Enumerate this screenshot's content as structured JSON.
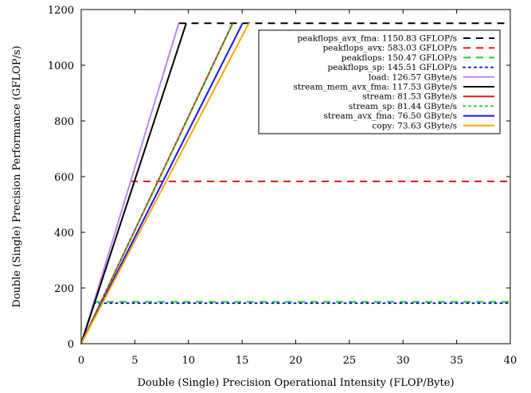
{
  "chart_data": {
    "type": "line",
    "title": "",
    "xlabel": "Double (Single) Precision Operational Intensity (FLOP/Byte)",
    "ylabel": "Double (Single) Precision Performance (GFLOP/s)",
    "xlim": [
      0,
      40
    ],
    "ylim": [
      0,
      1200
    ],
    "xticks": [
      0,
      5,
      10,
      15,
      20,
      25,
      30,
      35,
      40
    ],
    "yticks": [
      0,
      200,
      400,
      600,
      800,
      1000,
      1200
    ],
    "grid": false,
    "legend_position": "top-right",
    "ceilings": [
      {
        "name": "peakflops_avx_fma: 1150.83 GFLOP/s",
        "kind": "compute",
        "value": 1150.83,
        "color": "#000000",
        "style": "dashed"
      },
      {
        "name": "peakflops_avx: 583.03 GFLOP/s",
        "kind": "compute",
        "value": 583.03,
        "color": "#e41a1c",
        "style": "dashed"
      },
      {
        "name": "peakflops: 150.47 GFLOP/s",
        "kind": "compute",
        "value": 150.47,
        "color": "#22cc22",
        "style": "dashed"
      },
      {
        "name": "peakflops_sp: 145.51 GFLOP/s",
        "kind": "compute",
        "value": 145.51,
        "color": "#1515ee",
        "style": "dotted"
      },
      {
        "name": "load: 126.57 GByte/s",
        "kind": "bandwidth",
        "value": 126.57,
        "color": "#bb88ee",
        "style": "solid"
      },
      {
        "name": "stream_mem_avx_fma: 117.53 GByte/s",
        "kind": "bandwidth",
        "value": 117.53,
        "color": "#000000",
        "style": "solid"
      },
      {
        "name": "stream: 81.53 GByte/s",
        "kind": "bandwidth",
        "value": 81.53,
        "color": "#e41a1c",
        "style": "solid"
      },
      {
        "name": "stream_sp: 81.44 GByte/s",
        "kind": "bandwidth",
        "value": 81.44,
        "color": "#22cc22",
        "style": "dotted"
      },
      {
        "name": "stream_avx_fma: 76.50 GByte/s",
        "kind": "bandwidth",
        "value": 76.5,
        "color": "#1515ee",
        "style": "solid"
      },
      {
        "name": "copy: 73.63 GByte/s",
        "kind": "bandwidth",
        "value": 73.63,
        "color": "#ffa500",
        "style": "solid"
      }
    ]
  }
}
